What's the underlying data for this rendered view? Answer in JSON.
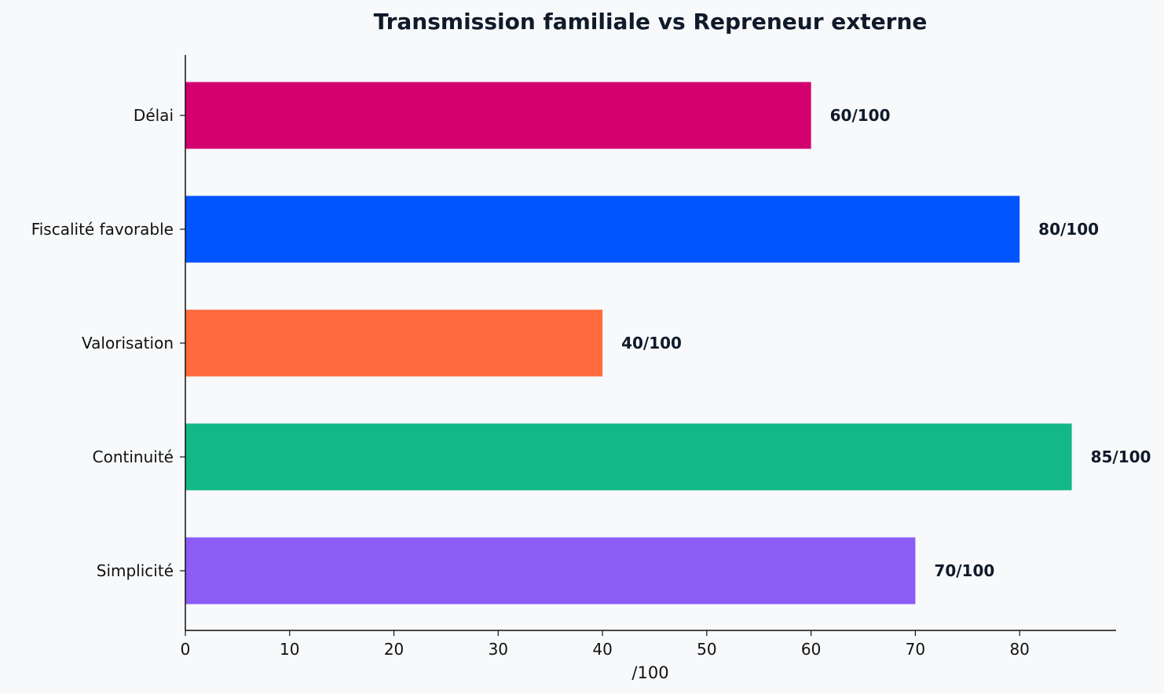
{
  "chart_data": {
    "type": "bar",
    "orientation": "horizontal",
    "title": "Transmission familiale vs Repreneur externe",
    "xlabel": "/100",
    "ylabel": "",
    "categories": [
      "Délai",
      "Fiscalité favorable",
      "Valorisation",
      "Continuité",
      "Simplicité"
    ],
    "values": [
      60,
      80,
      40,
      85,
      70
    ],
    "data_labels": [
      "60/100",
      "80/100",
      "40/100",
      "85/100",
      "70/100"
    ],
    "colors": [
      "#d5006f",
      "#0055ff",
      "#ff6b3d",
      "#12b886",
      "#8b5cf6"
    ],
    "xlim": [
      0,
      89.25
    ],
    "xticks": [
      0,
      10,
      20,
      30,
      40,
      50,
      60,
      70,
      80
    ],
    "grid": false,
    "legend": "none"
  }
}
